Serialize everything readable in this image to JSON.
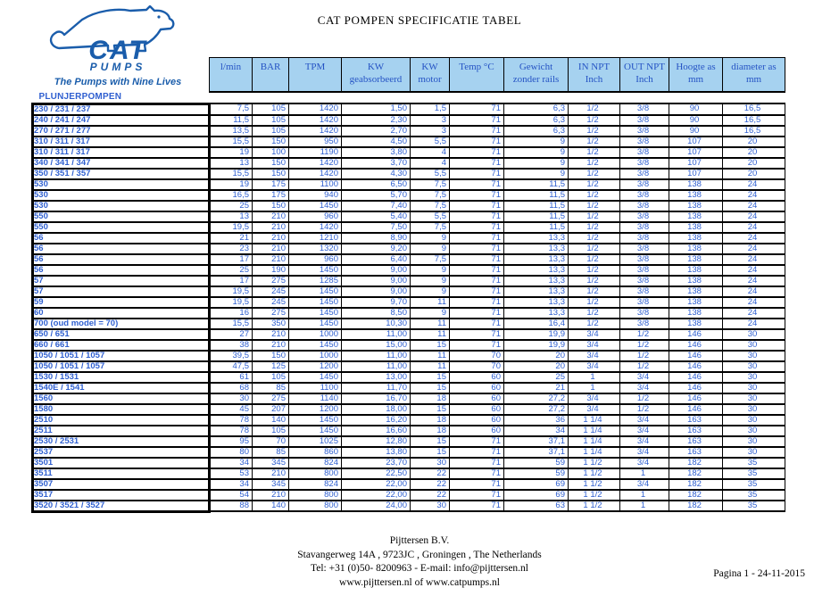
{
  "title": "CAT POMPEN SPECIFICATIE TABEL",
  "logo": {
    "brand_top": "CAT",
    "brand_bottom": "PUMPS",
    "tagline": "The Pumps with Nine Lives"
  },
  "section_label": "PLUNJERPOMPEN",
  "table": {
    "headers": [
      {
        "line1": "l/min",
        "line2": ""
      },
      {
        "line1": "BAR",
        "line2": ""
      },
      {
        "line1": "TPM",
        "line2": ""
      },
      {
        "line1": "KW",
        "line2": "geabsorbeerd"
      },
      {
        "line1": "KW",
        "line2": "motor"
      },
      {
        "line1": "Temp °C",
        "line2": ""
      },
      {
        "line1": "Gewicht",
        "line2": "zonder rails"
      },
      {
        "line1": "IN NPT",
        "line2": "Inch"
      },
      {
        "line1": "OUT NPT",
        "line2": "Inch"
      },
      {
        "line1": "Hoogte as",
        "line2": "mm"
      },
      {
        "line1": "diameter as",
        "line2": "mm"
      }
    ],
    "rows": [
      {
        "model": "230 / 231 / 237",
        "values": [
          "7,5",
          "105",
          "1420",
          "1,50",
          "1,5",
          "71",
          "6,3",
          "1/2",
          "3/8",
          "90",
          "16,5"
        ]
      },
      {
        "model": "240 / 241 / 247",
        "values": [
          "11,5",
          "105",
          "1420",
          "2,30",
          "3",
          "71",
          "6,3",
          "1/2",
          "3/8",
          "90",
          "16,5"
        ]
      },
      {
        "model": "270 / 271 / 277",
        "values": [
          "13,5",
          "105",
          "1420",
          "2,70",
          "3",
          "71",
          "6,3",
          "1/2",
          "3/8",
          "90",
          "16,5"
        ]
      },
      {
        "model": "310 / 311 / 317",
        "values": [
          "15,5",
          "150",
          "950",
          "4,50",
          "5,5",
          "71",
          "9",
          "1/2",
          "3/8",
          "107",
          "20"
        ]
      },
      {
        "model": "310 / 311 / 317",
        "values": [
          "19",
          "100",
          "1190",
          "3,80",
          "4",
          "71",
          "9",
          "1/2",
          "3/8",
          "107",
          "20"
        ]
      },
      {
        "model": "340 / 341 / 347",
        "values": [
          "13",
          "150",
          "1420",
          "3,70",
          "4",
          "71",
          "9",
          "1/2",
          "3/8",
          "107",
          "20"
        ]
      },
      {
        "model": "350 / 351 / 357",
        "values": [
          "15,5",
          "150",
          "1420",
          "4,30",
          "5,5",
          "71",
          "9",
          "1/2",
          "3/8",
          "107",
          "20"
        ]
      },
      {
        "model": "530",
        "values": [
          "19",
          "175",
          "1100",
          "6,50",
          "7,5",
          "71",
          "11,5",
          "1/2",
          "3/8",
          "138",
          "24"
        ]
      },
      {
        "model": "530",
        "values": [
          "16,5",
          "175",
          "940",
          "5,70",
          "7,5",
          "71",
          "11,5",
          "1/2",
          "3/8",
          "138",
          "24"
        ]
      },
      {
        "model": "530",
        "values": [
          "25",
          "150",
          "1450",
          "7,40",
          "7,5",
          "71",
          "11,5",
          "1/2",
          "3/8",
          "138",
          "24"
        ]
      },
      {
        "model": "550",
        "values": [
          "13",
          "210",
          "960",
          "5,40",
          "5,5",
          "71",
          "11,5",
          "1/2",
          "3/8",
          "138",
          "24"
        ]
      },
      {
        "model": "550",
        "values": [
          "19,5",
          "210",
          "1420",
          "7,50",
          "7,5",
          "71",
          "11,5",
          "1/2",
          "3/8",
          "138",
          "24"
        ]
      },
      {
        "model": "56",
        "values": [
          "21",
          "210",
          "1210",
          "8,90",
          "9",
          "71",
          "13,3",
          "1/2",
          "3/8",
          "138",
          "24"
        ]
      },
      {
        "model": "56",
        "values": [
          "23",
          "210",
          "1320",
          "9,20",
          "9",
          "71",
          "13,3",
          "1/2",
          "3/8",
          "138",
          "24"
        ]
      },
      {
        "model": "56",
        "values": [
          "17",
          "210",
          "960",
          "6,40",
          "7,5",
          "71",
          "13,3",
          "1/2",
          "3/8",
          "138",
          "24"
        ]
      },
      {
        "model": "56",
        "values": [
          "25",
          "190",
          "1450",
          "9,00",
          "9",
          "71",
          "13,3",
          "1/2",
          "3/8",
          "138",
          "24"
        ]
      },
      {
        "model": "57",
        "values": [
          "17",
          "275",
          "1285",
          "9,00",
          "9",
          "71",
          "13,3",
          "1/2",
          "3/8",
          "138",
          "24"
        ]
      },
      {
        "model": "57",
        "values": [
          "19,5",
          "245",
          "1450",
          "9,00",
          "9",
          "71",
          "13,3",
          "1/2",
          "3/8",
          "138",
          "24"
        ]
      },
      {
        "model": "59",
        "values": [
          "19,5",
          "245",
          "1450",
          "9,70",
          "11",
          "71",
          "13,3",
          "1/2",
          "3/8",
          "138",
          "24"
        ]
      },
      {
        "model": "60",
        "values": [
          "16",
          "275",
          "1450",
          "8,50",
          "9",
          "71",
          "13,3",
          "1/2",
          "3/8",
          "138",
          "24"
        ]
      },
      {
        "model": "700 (oud model = 70)",
        "values": [
          "15,5",
          "350",
          "1450",
          "10,30",
          "11",
          "71",
          "16,4",
          "1/2",
          "3/8",
          "138",
          "24"
        ]
      },
      {
        "model": "650 / 651",
        "values": [
          "27",
          "210",
          "1000",
          "11,00",
          "11",
          "71",
          "19,9",
          "3/4",
          "1/2",
          "146",
          "30"
        ]
      },
      {
        "model": "660 / 661",
        "values": [
          "38",
          "210",
          "1450",
          "15,00",
          "15",
          "71",
          "19,9",
          "3/4",
          "1/2",
          "146",
          "30"
        ]
      },
      {
        "model": "1050 / 1051 / 1057",
        "values": [
          "39,5",
          "150",
          "1000",
          "11,00",
          "11",
          "70",
          "20",
          "3/4",
          "1/2",
          "146",
          "30"
        ]
      },
      {
        "model": "1050 / 1051 / 1057",
        "values": [
          "47,5",
          "125",
          "1200",
          "11,00",
          "11",
          "70",
          "20",
          "3/4",
          "1/2",
          "146",
          "30"
        ]
      },
      {
        "model": "1530 / 1531",
        "values": [
          "61",
          "105",
          "1450",
          "13,00",
          "15",
          "60",
          "25",
          "1",
          "3/4",
          "146",
          "30"
        ]
      },
      {
        "model": "1540E / 1541",
        "values": [
          "68",
          "85",
          "1100",
          "11,70",
          "15",
          "60",
          "21",
          "1",
          "3/4",
          "146",
          "30"
        ]
      },
      {
        "model": "1560",
        "values": [
          "30",
          "275",
          "1140",
          "16,70",
          "18",
          "60",
          "27,2",
          "3/4",
          "1/2",
          "146",
          "30"
        ]
      },
      {
        "model": "1580",
        "values": [
          "45",
          "207",
          "1200",
          "18,00",
          "15",
          "60",
          "27,2",
          "3/4",
          "1/2",
          "146",
          "30"
        ]
      },
      {
        "model": "2510",
        "values": [
          "78",
          "140",
          "1450",
          "16,20",
          "18",
          "60",
          "36",
          "1 1/4",
          "3/4",
          "163",
          "30"
        ]
      },
      {
        "model": "2511",
        "values": [
          "78",
          "105",
          "1450",
          "16,60",
          "18",
          "60",
          "34",
          "1 1/4",
          "3/4",
          "163",
          "30"
        ]
      },
      {
        "model": "2530 / 2531",
        "values": [
          "95",
          "70",
          "1025",
          "12,80",
          "15",
          "71",
          "37,1",
          "1 1/4",
          "3/4",
          "163",
          "30"
        ]
      },
      {
        "model": "2537",
        "values": [
          "80",
          "85",
          "860",
          "13,80",
          "15",
          "71",
          "37,1",
          "1 1/4",
          "3/4",
          "163",
          "30"
        ]
      },
      {
        "model": "3501",
        "values": [
          "34",
          "345",
          "824",
          "23,70",
          "30",
          "71",
          "59",
          "1 1/2",
          "3/4",
          "182",
          "35"
        ]
      },
      {
        "model": "3511",
        "values": [
          "53",
          "210",
          "800",
          "22,50",
          "22",
          "71",
          "59",
          "1 1/2",
          "1",
          "182",
          "35"
        ]
      },
      {
        "model": "3507",
        "values": [
          "34",
          "345",
          "824",
          "22,00",
          "22",
          "71",
          "69",
          "1 1/2",
          "3/4",
          "182",
          "35"
        ]
      },
      {
        "model": "3517",
        "values": [
          "54",
          "210",
          "800",
          "22,00",
          "22",
          "71",
          "69",
          "1 1/2",
          "1",
          "182",
          "35"
        ]
      },
      {
        "model": "3520 / 3521 / 3527",
        "values": [
          "88",
          "140",
          "800",
          "24,00",
          "30",
          "71",
          "63",
          "1 1/2",
          "1",
          "182",
          "35"
        ]
      }
    ]
  },
  "footer": {
    "company": "Pijttersen B.V.",
    "address": "Stavangerweg 14A , 9723JC , Groningen , The Netherlands",
    "contact": "Tel: +31 (0)50- 8200963 - E-mail: info@pijttersen.nl",
    "websites": "www.pijttersen.nl  of  www.catpumps.nl",
    "pagina": "Pagina 1 - 24-11-2015"
  },
  "colors": {
    "header_bg": "#a6d2f0",
    "table_text": "#3060d0",
    "header_text": "#2553c4",
    "logo_blue": "#1a5dab",
    "border": "#000000"
  }
}
